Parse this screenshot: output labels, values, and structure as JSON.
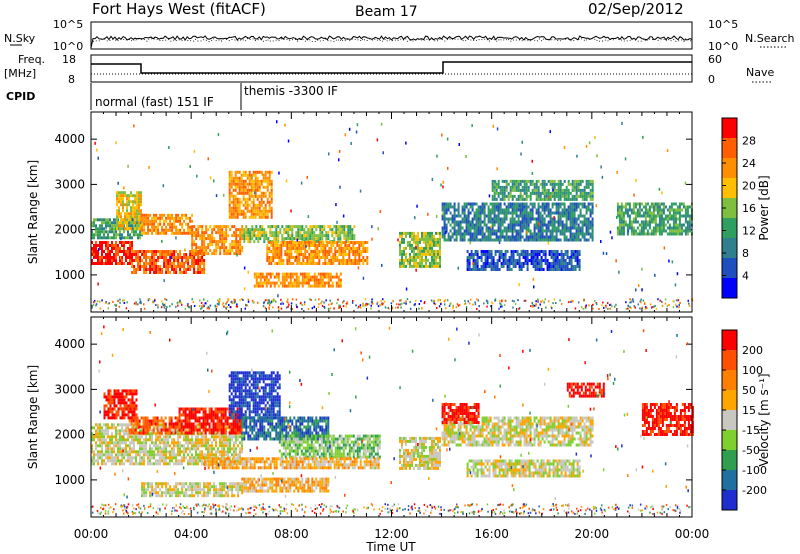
{
  "header": {
    "title": "Fort Hays West (fitACF)",
    "beam": "Beam 17",
    "date": "02/Sep/2012"
  },
  "panels": {
    "nsky_label": "N.Sky",
    "nsearch_label": "N.Search",
    "nsky_ticks": [
      "10^5",
      "10^0"
    ],
    "nsearch_ticks": [
      "10^5",
      "10^0"
    ],
    "freq_label_1": "Freq.",
    "freq_label_2": "[MHz]",
    "freq_ticks": [
      "18",
      "8"
    ],
    "nave_label": "Nave",
    "nave_ticks": [
      "60",
      "0"
    ],
    "cpid_label": "CPID",
    "cpid_modes": [
      "normal (fast) 151 IF",
      "themis -3300 IF"
    ]
  },
  "colors": {
    "power": [
      "#0000ff",
      "#1f4fbf",
      "#2f7f8f",
      "#2f9f5f",
      "#7fbf3f",
      "#ffbf00",
      "#ff8f00",
      "#ff5f00",
      "#ff0000"
    ],
    "velocity": [
      "#1f2fcf",
      "#1f6f9f",
      "#2f9f4f",
      "#7fcf2f",
      "#c8c8c0",
      "#ffa500",
      "#ff7f00",
      "#ff4f00",
      "#ff0000"
    ]
  },
  "chart_data": [
    {
      "type": "heatmap",
      "name": "power",
      "ylabel": "Slant Range [km]",
      "ylim": [
        180,
        4600
      ],
      "yticks": [
        "4000",
        "3000",
        "2000",
        "1000"
      ],
      "colorbar": {
        "label": "Power [dB]",
        "ticks": [
          "28",
          "24",
          "20",
          "16",
          "12",
          "8",
          "4"
        ]
      },
      "regions": [
        {
          "t0": 0.0,
          "t1": 1.6,
          "r0": 1250,
          "r1": 1750,
          "level": 8
        },
        {
          "t0": 0.0,
          "t1": 2.0,
          "r0": 1800,
          "r1": 2250,
          "level": 3
        },
        {
          "t0": 1.6,
          "t1": 4.5,
          "r0": 1050,
          "r1": 1550,
          "level": 7
        },
        {
          "t0": 1.0,
          "t1": 2.0,
          "r0": 2050,
          "r1": 2850,
          "level": 5
        },
        {
          "t0": 2.0,
          "t1": 4.0,
          "r0": 1950,
          "r1": 2350,
          "level": 6
        },
        {
          "t0": 4.0,
          "t1": 6.0,
          "r0": 1450,
          "r1": 2100,
          "level": 6
        },
        {
          "t0": 5.5,
          "t1": 7.2,
          "r0": 2300,
          "r1": 3300,
          "level": 6
        },
        {
          "t0": 6.0,
          "t1": 10.5,
          "r0": 1750,
          "r1": 2100,
          "level": 4
        },
        {
          "t0": 7.0,
          "t1": 11.0,
          "r0": 1250,
          "r1": 1750,
          "level": 6
        },
        {
          "t0": 6.5,
          "t1": 10.0,
          "r0": 750,
          "r1": 1050,
          "level": 6
        },
        {
          "t0": 12.3,
          "t1": 13.9,
          "r0": 1200,
          "r1": 1950,
          "level": 4
        },
        {
          "t0": 14.0,
          "t1": 20.0,
          "r0": 1800,
          "r1": 2600,
          "level": 2
        },
        {
          "t0": 15.0,
          "t1": 19.5,
          "r0": 1150,
          "r1": 1550,
          "level": 1
        },
        {
          "t0": 16.0,
          "t1": 20.0,
          "r0": 2700,
          "r1": 3100,
          "level": 3
        },
        {
          "t0": 21.0,
          "t1": 24.0,
          "r0": 1900,
          "r1": 2600,
          "level": 3
        }
      ]
    },
    {
      "type": "heatmap",
      "name": "velocity",
      "ylabel": "Slant Range [km]",
      "ylim": [
        180,
        4600
      ],
      "yticks": [
        "4000",
        "3000",
        "2000",
        "1000"
      ],
      "colorbar": {
        "label": "Velocity [m s⁻¹]",
        "ticks": [
          "200",
          "100",
          "50",
          "15",
          "-15",
          "-50",
          "-100",
          "-200"
        ]
      },
      "regions": [
        {
          "t0": 0.0,
          "t1": 6.0,
          "r0": 1350,
          "r1": 2250,
          "level": 4
        },
        {
          "t0": 0.5,
          "t1": 1.8,
          "r0": 2400,
          "r1": 3000,
          "level": 8
        },
        {
          "t0": 1.5,
          "t1": 3.5,
          "r0": 2050,
          "r1": 2400,
          "level": 7
        },
        {
          "t0": 3.5,
          "t1": 6.0,
          "r0": 2050,
          "r1": 2600,
          "level": 8
        },
        {
          "t0": 5.5,
          "t1": 7.5,
          "r0": 2400,
          "r1": 3400,
          "level": 0
        },
        {
          "t0": 6.0,
          "t1": 9.5,
          "r0": 1900,
          "r1": 2400,
          "level": 1
        },
        {
          "t0": 7.5,
          "t1": 11.5,
          "r0": 1500,
          "r1": 2000,
          "level": 3
        },
        {
          "t0": 4.5,
          "t1": 11.5,
          "r0": 1250,
          "r1": 1500,
          "level": 5
        },
        {
          "t0": 6.0,
          "t1": 9.5,
          "r0": 750,
          "r1": 1050,
          "level": 5
        },
        {
          "t0": 2.0,
          "t1": 6.0,
          "r0": 650,
          "r1": 950,
          "level": 4
        },
        {
          "t0": 12.3,
          "t1": 13.9,
          "r0": 1250,
          "r1": 1950,
          "level": 4
        },
        {
          "t0": 14.0,
          "t1": 20.0,
          "r0": 1750,
          "r1": 2400,
          "level": 4
        },
        {
          "t0": 15.0,
          "t1": 19.5,
          "r0": 1100,
          "r1": 1450,
          "level": 4
        },
        {
          "t0": 14.0,
          "t1": 15.5,
          "r0": 2300,
          "r1": 2700,
          "level": 8
        },
        {
          "t0": 19.0,
          "t1": 20.5,
          "r0": 2850,
          "r1": 3150,
          "level": 8
        },
        {
          "t0": 22.0,
          "t1": 24.0,
          "r0": 2000,
          "r1": 2700,
          "level": 8
        }
      ]
    }
  ],
  "x_axis": {
    "label": "Time UT",
    "ticks": [
      "00:00",
      "04:00",
      "08:00",
      "12:00",
      "16:00",
      "20:00",
      "00:00"
    ],
    "xlim": [
      0,
      24
    ]
  }
}
